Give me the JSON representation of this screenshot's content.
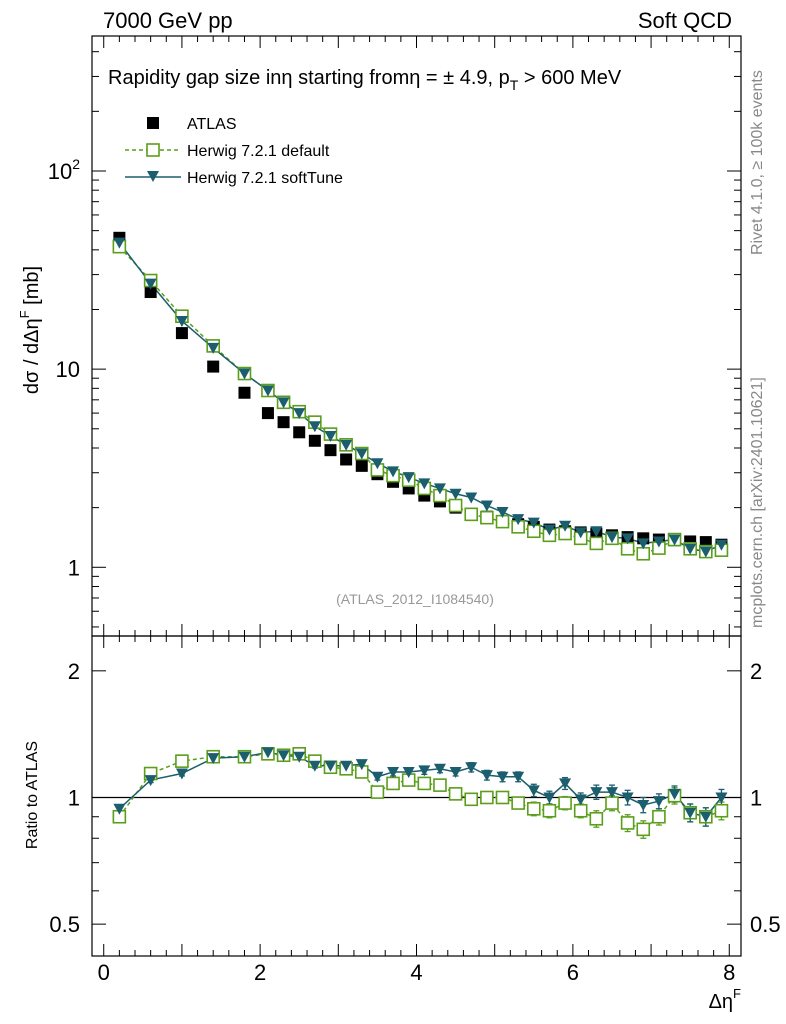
{
  "header": {
    "left": "7000 GeV pp",
    "right": "Soft QCD"
  },
  "side_labels": {
    "rivet": "Rivet 4.1.0, ≥ 100k events",
    "mcplots": "mcplots.cern.ch [arXiv:2401.10621]"
  },
  "colors": {
    "atlas": "#000000",
    "default": "#5a9e1a",
    "softtune": "#1b5e6e"
  },
  "chart_data": [
    {
      "type": "scatter",
      "title": "Rapidity gap size inη starting fromη = ± 4.9, p_T > 600 MeV",
      "title_main": "Rapidity gap size inη starting fromη = ± 4.9, p",
      "title_sub": "T",
      "title_tail": " > 600 MeV",
      "xlabel": "ΔηF",
      "xlabel_main": "Δη",
      "xlabel_sup": "F",
      "ylabel": "dσ / dΔηF [mb]",
      "ylabel_main": "dσ / dΔη",
      "ylabel_sup": "F",
      "ylabel_tail": " [mb]",
      "yscale": "log",
      "xlim": [
        -0.15,
        8.15
      ],
      "ylim": [
        0.45,
        480
      ],
      "ytick_labels": [
        {
          "value": 1,
          "base": "1",
          "exp": ""
        },
        {
          "value": 10,
          "base": "10",
          "exp": ""
        },
        {
          "value": 100,
          "base": "10",
          "exp": "2"
        }
      ],
      "xtick_labels": [
        {
          "value": 0,
          "label": "0"
        },
        {
          "value": 2,
          "label": "2"
        },
        {
          "value": 4,
          "label": "4"
        },
        {
          "value": 6,
          "label": "6"
        },
        {
          "value": 8,
          "label": "8"
        }
      ],
      "watermark": "(ATLAS_2012_I1084540)",
      "legend": [
        "ATLAS",
        "Herwig 7.2.1 default",
        "Herwig 7.2.1 softTune"
      ],
      "legend_position": "top-left",
      "x": [
        0.2,
        0.6,
        1.0,
        1.4,
        1.8,
        2.1,
        2.3,
        2.5,
        2.7,
        2.9,
        3.1,
        3.3,
        3.5,
        3.7,
        3.9,
        4.1,
        4.3,
        4.5,
        4.7,
        4.9,
        5.1,
        5.3,
        5.5,
        5.7,
        5.9,
        6.1,
        6.3,
        6.5,
        6.7,
        6.9,
        7.1,
        7.3,
        7.5,
        7.7,
        7.9
      ],
      "series": [
        {
          "name": "ATLAS",
          "values": [
            46,
            24.5,
            15.2,
            10.3,
            7.6,
            6.0,
            5.4,
            4.8,
            4.35,
            3.9,
            3.5,
            3.25,
            2.95,
            2.7,
            2.5,
            2.3,
            2.15,
            2.0,
            1.85,
            1.8,
            1.7,
            1.65,
            1.6,
            1.55,
            1.52,
            1.5,
            1.48,
            1.45,
            1.42,
            1.4,
            1.38,
            1.37,
            1.35,
            1.34,
            1.3
          ]
        },
        {
          "name": "Herwig 7.2.1 default",
          "values": [
            41.5,
            28,
            18.5,
            13.1,
            9.5,
            7.8,
            6.8,
            6.1,
            5.4,
            4.7,
            4.15,
            3.75,
            3.1,
            2.9,
            2.75,
            2.5,
            2.3,
            2.05,
            1.85,
            1.78,
            1.7,
            1.6,
            1.52,
            1.45,
            1.48,
            1.4,
            1.32,
            1.4,
            1.24,
            1.17,
            1.25,
            1.38,
            1.24,
            1.2,
            1.22
          ]
        },
        {
          "name": "Herwig 7.2.1 softTune",
          "values": [
            43.5,
            27,
            17.5,
            12.8,
            9.5,
            7.8,
            6.8,
            6.0,
            5.15,
            4.6,
            4.15,
            3.75,
            3.35,
            3.05,
            2.85,
            2.65,
            2.5,
            2.35,
            2.25,
            2.05,
            1.9,
            1.75,
            1.68,
            1.55,
            1.62,
            1.5,
            1.52,
            1.42,
            1.4,
            1.32,
            1.35,
            1.38,
            1.24,
            1.2,
            1.3
          ]
        }
      ]
    },
    {
      "type": "scatter",
      "title": "",
      "xlabel": "ΔηF",
      "ylabel": "Ratio to ATLAS",
      "yscale": "log",
      "xlim": [
        -0.15,
        8.15
      ],
      "ylim": [
        0.42,
        2.42
      ],
      "ytick_labels": [
        {
          "value": 0.5,
          "label": "0.5"
        },
        {
          "value": 1,
          "label": "1"
        },
        {
          "value": 2,
          "label": "2"
        }
      ],
      "reference_line": 1,
      "x": [
        0.2,
        0.6,
        1.0,
        1.4,
        1.8,
        2.1,
        2.3,
        2.5,
        2.7,
        2.9,
        3.1,
        3.3,
        3.5,
        3.7,
        3.9,
        4.1,
        4.3,
        4.5,
        4.7,
        4.9,
        5.1,
        5.3,
        5.5,
        5.7,
        5.9,
        6.1,
        6.3,
        6.5,
        6.7,
        6.9,
        7.1,
        7.3,
        7.5,
        7.7,
        7.9
      ],
      "series": [
        {
          "name": "Herwig 7.2.1 default",
          "values": [
            0.9,
            1.14,
            1.22,
            1.25,
            1.25,
            1.27,
            1.26,
            1.27,
            1.22,
            1.18,
            1.17,
            1.15,
            1.03,
            1.08,
            1.1,
            1.08,
            1.07,
            1.02,
            0.99,
            1.0,
            1.0,
            0.97,
            0.94,
            0.93,
            0.97,
            0.93,
            0.89,
            0.97,
            0.87,
            0.84,
            0.9,
            1.01,
            0.92,
            0.9,
            0.93
          ],
          "errors": [
            0.012,
            0.015,
            0.015,
            0.015,
            0.015,
            0.015,
            0.015,
            0.015,
            0.015,
            0.015,
            0.02,
            0.02,
            0.02,
            0.025,
            0.025,
            0.025,
            0.025,
            0.025,
            0.03,
            0.03,
            0.03,
            0.03,
            0.035,
            0.035,
            0.035,
            0.035,
            0.04,
            0.04,
            0.04,
            0.04,
            0.04,
            0.045,
            0.045,
            0.045,
            0.045
          ]
        },
        {
          "name": "Herwig 7.2.1 softTune",
          "values": [
            0.94,
            1.1,
            1.14,
            1.24,
            1.25,
            1.28,
            1.26,
            1.25,
            1.19,
            1.19,
            1.19,
            1.2,
            1.12,
            1.15,
            1.15,
            1.16,
            1.17,
            1.15,
            1.18,
            1.13,
            1.12,
            1.12,
            1.04,
            1.0,
            1.08,
            0.99,
            1.03,
            1.03,
            1.0,
            0.96,
            0.98,
            1.02,
            0.92,
            0.9,
            1.0
          ],
          "errors": [
            0.012,
            0.015,
            0.015,
            0.015,
            0.015,
            0.015,
            0.015,
            0.015,
            0.015,
            0.015,
            0.02,
            0.02,
            0.02,
            0.025,
            0.025,
            0.025,
            0.025,
            0.025,
            0.03,
            0.03,
            0.03,
            0.03,
            0.035,
            0.035,
            0.035,
            0.035,
            0.04,
            0.04,
            0.04,
            0.04,
            0.04,
            0.045,
            0.045,
            0.045,
            0.045
          ]
        }
      ]
    }
  ]
}
